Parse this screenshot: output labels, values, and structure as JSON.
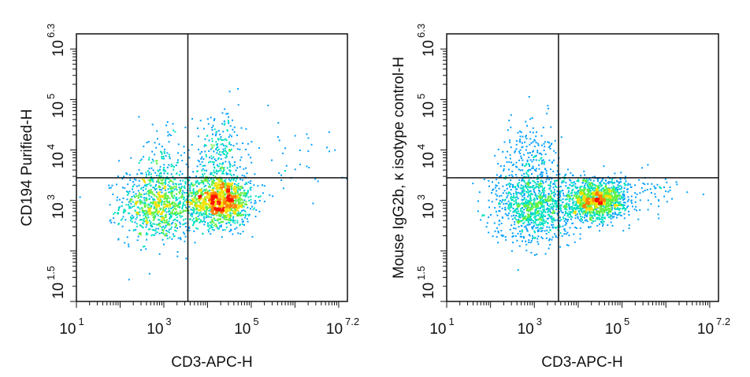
{
  "chart_data": [
    {
      "type": "scatter",
      "subtype": "flow-cytometry-density-plot",
      "x_label": "CD3-APC-H",
      "y_label": "CD194 Purified-H",
      "x_scale": "log",
      "y_scale": "log",
      "xlim_exponent": [
        1,
        7.2
      ],
      "ylim_exponent": [
        1,
        6.3
      ],
      "x_ticks": [
        {
          "base": "10",
          "exp": "1"
        },
        {
          "base": "10",
          "exp": "3"
        },
        {
          "base": "10",
          "exp": "5"
        },
        {
          "base": "10",
          "exp": "7.2"
        }
      ],
      "y_ticks": [
        {
          "base": "10",
          "exp": "1.5"
        },
        {
          "base": "10",
          "exp": "3"
        },
        {
          "base": "10",
          "exp": "4"
        },
        {
          "base": "10",
          "exp": "5"
        },
        {
          "base": "10",
          "exp": "6.3"
        }
      ],
      "quadrant_gate": {
        "x_exponent": 3.55,
        "y_exponent": 3.45
      },
      "populations": [
        {
          "name": "",
          "center_exp": [
            2.9,
            2.9
          ],
          "spread_exp": [
            0.45,
            0.35
          ],
          "count": 900
        },
        {
          "name": "",
          "center_exp": [
            4.3,
            3.0
          ],
          "spread_exp": [
            0.35,
            0.25
          ],
          "count": 1300
        },
        {
          "name": "",
          "center_exp": [
            4.3,
            3.9
          ],
          "spread_exp": [
            0.3,
            0.45
          ],
          "count": 250
        },
        {
          "name": "",
          "center_exp": [
            2.9,
            3.7
          ],
          "spread_exp": [
            0.3,
            0.4
          ],
          "count": 120
        },
        {
          "name": "",
          "center_exp": [
            6.1,
            3.8
          ],
          "spread_exp": [
            0.6,
            0.35
          ],
          "count": 40
        }
      ],
      "density_colors": [
        "#1a1aff",
        "#00a0ff",
        "#00e0c0",
        "#60f040",
        "#f0e000",
        "#ff8000",
        "#ff1000"
      ]
    },
    {
      "type": "scatter",
      "subtype": "flow-cytometry-density-plot",
      "x_label": "CD3-APC-H",
      "y_label": "Mouse IgG2b, κ isotype control-H",
      "x_scale": "log",
      "y_scale": "log",
      "xlim_exponent": [
        1,
        7.2
      ],
      "ylim_exponent": [
        1,
        6.3
      ],
      "x_ticks": [
        {
          "base": "10",
          "exp": "1"
        },
        {
          "base": "10",
          "exp": "3"
        },
        {
          "base": "10",
          "exp": "5"
        },
        {
          "base": "10",
          "exp": "7.2"
        }
      ],
      "y_ticks": [
        {
          "base": "10",
          "exp": "1.5"
        },
        {
          "base": "10",
          "exp": "3"
        },
        {
          "base": "10",
          "exp": "4"
        },
        {
          "base": "10",
          "exp": "5"
        },
        {
          "base": "10",
          "exp": "6.3"
        }
      ],
      "quadrant_gate": {
        "x_exponent": 3.55,
        "y_exponent": 3.45
      },
      "populations": [
        {
          "name": "",
          "center_exp": [
            3.0,
            2.9
          ],
          "spread_exp": [
            0.45,
            0.35
          ],
          "count": 1000
        },
        {
          "name": "",
          "center_exp": [
            4.4,
            3.0
          ],
          "spread_exp": [
            0.35,
            0.2
          ],
          "count": 1300
        },
        {
          "name": "",
          "center_exp": [
            2.9,
            3.8
          ],
          "spread_exp": [
            0.3,
            0.45
          ],
          "count": 200
        },
        {
          "name": "",
          "center_exp": [
            5.6,
            3.2
          ],
          "spread_exp": [
            0.5,
            0.2
          ],
          "count": 60
        }
      ],
      "density_colors": [
        "#1a1aff",
        "#00a0ff",
        "#00e0c0",
        "#60f040",
        "#f0e000",
        "#ff8000",
        "#ff1000"
      ]
    }
  ]
}
